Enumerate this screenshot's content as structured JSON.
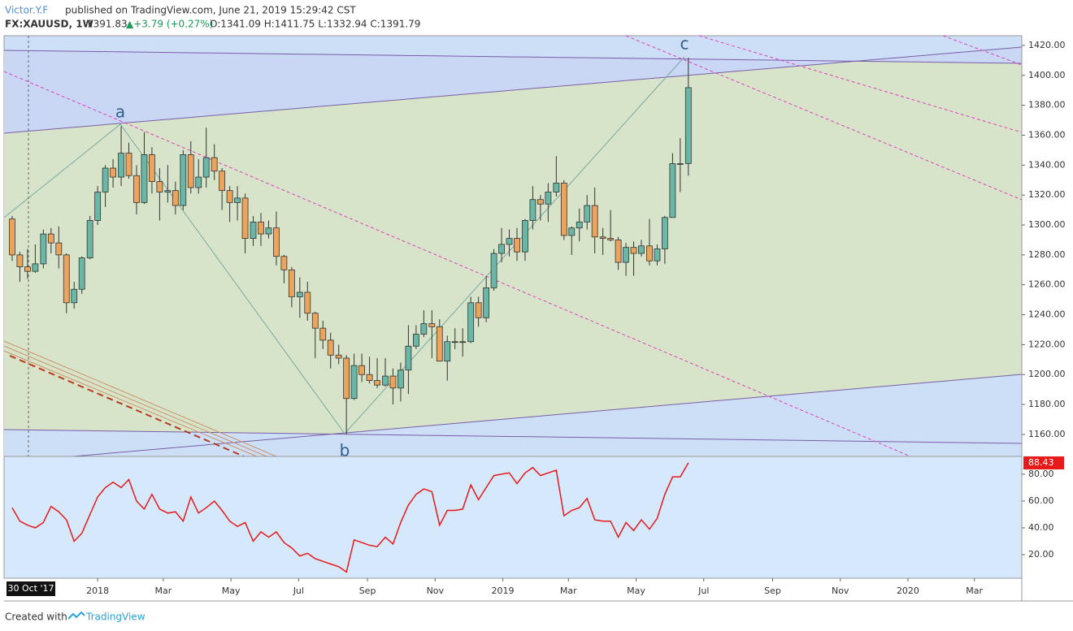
{
  "header": {
    "author": "Victor.Y.F",
    "published": "published on TradingView.com, June 21, 2019 15:29:42 CST",
    "symbol": "FX:XAUUSD, 1W",
    "last": "1391.83",
    "change": "▲+3.79 (+0.27%)",
    "ohlc": "O:1341.09 H:1411.75 L:1332.94 C:1391.79"
  },
  "footer": {
    "created": "Created with",
    "brand": "TradingView"
  },
  "crosshair_label": "30 Oct '17",
  "wave_labels": [
    "a",
    "b",
    "c"
  ],
  "chart_data": {
    "type": "candlestick",
    "up_color": "#6ab7a7",
    "down_color": "#eca45c",
    "x": [
      2017.789,
      2017.808,
      2017.827,
      2017.846,
      2017.866,
      2017.885,
      2017.904,
      2017.923,
      2017.942,
      2017.961,
      2017.981,
      2018.0,
      2018.019,
      2018.038,
      2018.058,
      2018.077,
      2018.096,
      2018.115,
      2018.134,
      2018.153,
      2018.173,
      2018.192,
      2018.211,
      2018.23,
      2018.249,
      2018.268,
      2018.288,
      2018.307,
      2018.326,
      2018.345,
      2018.364,
      2018.384,
      2018.403,
      2018.422,
      2018.441,
      2018.46,
      2018.479,
      2018.499,
      2018.518,
      2018.537,
      2018.556,
      2018.575,
      2018.595,
      2018.614,
      2018.633,
      2018.652,
      2018.671,
      2018.69,
      2018.71,
      2018.729,
      2018.748,
      2018.767,
      2018.786,
      2018.805,
      2018.825,
      2018.844,
      2018.863,
      2018.882,
      2018.901,
      2018.921,
      2018.94,
      2018.959,
      2018.978,
      2018.997,
      2019.016,
      2019.035,
      2019.055,
      2019.074,
      2019.093,
      2019.112,
      2019.132,
      2019.151,
      2019.17,
      2019.189,
      2019.208,
      2019.227,
      2019.247,
      2019.266,
      2019.285,
      2019.304,
      2019.323,
      2019.342,
      2019.362,
      2019.381,
      2019.4,
      2019.419,
      2019.438,
      2019.458
    ],
    "open": [
      1304,
      1280,
      1272,
      1269,
      1274,
      1294,
      1288,
      1280,
      1248,
      1257,
      1278,
      1303,
      1322,
      1338,
      1332,
      1348,
      1333,
      1315,
      1347,
      1329,
      1322,
      1323,
      1313,
      1347,
      1325,
      1332,
      1345,
      1336,
      1323,
      1315,
      1318,
      1291,
      1302,
      1294,
      1298,
      1279,
      1270,
      1252,
      1255,
      1241,
      1231,
      1223,
      1213,
      1211,
      1184,
      1206,
      1200,
      1196,
      1193,
      1199,
      1191,
      1203,
      1219,
      1227,
      1234,
      1232,
      1209,
      1222,
      1222,
      1222,
      1248,
      1238,
      1258,
      1281,
      1287,
      1291,
      1282,
      1303,
      1317,
      1314,
      1322,
      1328,
      1293,
      1298,
      1302,
      1313,
      1292,
      1291,
      1290,
      1275,
      1285,
      1281,
      1286,
      1276,
      1284,
      1305,
      1341,
      1341.09
    ],
    "high": [
      1306,
      1282,
      1284,
      1287,
      1297,
      1298,
      1299,
      1281,
      1262,
      1279,
      1306,
      1326,
      1340,
      1344,
      1366,
      1355,
      1340,
      1362,
      1352,
      1338,
      1340,
      1329,
      1350,
      1356,
      1344,
      1365,
      1354,
      1338,
      1326,
      1326,
      1321,
      1306,
      1308,
      1303,
      1309,
      1280,
      1272,
      1265,
      1262,
      1242,
      1236,
      1228,
      1220,
      1213,
      1214,
      1214,
      1212,
      1211,
      1211,
      1204,
      1208,
      1233,
      1233,
      1243,
      1243,
      1237,
      1226,
      1231,
      1231,
      1252,
      1252,
      1266,
      1284,
      1298,
      1297,
      1298,
      1304,
      1326,
      1320,
      1328,
      1346,
      1330,
      1299,
      1311,
      1320,
      1325,
      1298,
      1310,
      1292,
      1288,
      1289,
      1290,
      1304,
      1287,
      1306,
      1348,
      1358,
      1411.75
    ],
    "low": [
      1276,
      1262,
      1264,
      1268,
      1271,
      1281,
      1271,
      1241,
      1244,
      1254,
      1277,
      1300,
      1312,
      1325,
      1326,
      1331,
      1307,
      1314,
      1321,
      1303,
      1315,
      1307,
      1310,
      1321,
      1321,
      1325,
      1330,
      1310,
      1302,
      1303,
      1281,
      1286,
      1286,
      1291,
      1273,
      1261,
      1245,
      1238,
      1236,
      1211,
      1217,
      1204,
      1207,
      1160,
      1183,
      1195,
      1194,
      1191,
      1192,
      1180,
      1182,
      1187,
      1217,
      1225,
      1211,
      1210,
      1196,
      1217,
      1212,
      1221,
      1232,
      1235,
      1256,
      1275,
      1279,
      1276,
      1276,
      1297,
      1303,
      1302,
      1319,
      1290,
      1280,
      1289,
      1297,
      1281,
      1280,
      1289,
      1270,
      1266,
      1266,
      1279,
      1273,
      1273,
      1274,
      1305,
      1322,
      1332.94
    ],
    "close": [
      1280,
      1272,
      1269,
      1274,
      1294,
      1288,
      1280,
      1248,
      1257,
      1278,
      1303,
      1322,
      1338,
      1332,
      1348,
      1333,
      1315,
      1347,
      1329,
      1322,
      1323,
      1313,
      1347,
      1325,
      1332,
      1345,
      1336,
      1323,
      1315,
      1318,
      1291,
      1302,
      1294,
      1298,
      1279,
      1270,
      1252,
      1255,
      1241,
      1231,
      1223,
      1213,
      1211,
      1184,
      1206,
      1200,
      1196,
      1193,
      1199,
      1191,
      1203,
      1219,
      1227,
      1234,
      1232,
      1209,
      1222,
      1222,
      1222,
      1248,
      1238,
      1258,
      1281,
      1287,
      1291,
      1282,
      1303,
      1317,
      1314,
      1322,
      1328,
      1293,
      1298,
      1302,
      1313,
      1292,
      1291,
      1290,
      1275,
      1285,
      1281,
      1286,
      1276,
      1284,
      1305,
      1341,
      1341,
      1391.79
    ],
    "xlim": [
      2017.769,
      2020.281
    ],
    "xticks": [
      2018,
      {
        "value": 2018.162,
        "label": "Mar"
      },
      {
        "value": 2018.329,
        "label": "May"
      },
      {
        "value": 2018.496,
        "label": "Jul"
      },
      {
        "value": 2018.666,
        "label": "Sep"
      },
      {
        "value": 2018.833,
        "label": "Nov"
      },
      2019,
      {
        "value": 2019.162,
        "label": "Mar"
      },
      {
        "value": 2019.329,
        "label": "May"
      },
      {
        "value": 2019.496,
        "label": "Jul"
      },
      {
        "value": 2019.666,
        "label": "Sep"
      },
      {
        "value": 2019.833,
        "label": "Nov"
      },
      2020,
      {
        "value": 2020.164,
        "label": "Mar"
      }
    ],
    "ylim": [
      1145.3,
      1426.5
    ],
    "yticks": [
      {
        "value": 1160,
        "label": "1160.00"
      },
      {
        "value": 1180,
        "label": "1180.00"
      },
      {
        "value": 1200,
        "label": "1200.00"
      },
      {
        "value": 1220,
        "label": "1220.00"
      },
      {
        "value": 1240,
        "label": "1240.00"
      },
      {
        "value": 1260,
        "label": "1260.00"
      },
      {
        "value": 1280,
        "label": "1280.00"
      },
      {
        "value": 1300,
        "label": "1300.00"
      },
      {
        "value": 1320,
        "label": "1320.00"
      },
      {
        "value": 1340,
        "label": "1340.00"
      },
      {
        "value": 1360,
        "label": "1360.00"
      },
      {
        "value": 1380,
        "label": "1380.00"
      },
      {
        "value": 1400,
        "label": "1400.00"
      },
      {
        "value": 1420,
        "label": "1420.00"
      }
    ],
    "indicator": {
      "type": "line",
      "color": "#e8191b",
      "values": [
        55,
        45,
        42,
        40,
        44,
        56,
        52,
        46,
        30,
        36,
        50,
        63,
        70,
        74,
        70,
        76,
        60,
        54,
        65,
        54,
        51,
        52,
        45,
        63,
        51,
        55,
        60,
        53,
        45,
        41,
        44,
        30,
        37,
        33,
        37,
        29,
        25,
        19,
        21,
        17,
        15,
        13,
        11,
        7,
        31,
        29,
        27,
        26,
        33,
        28,
        44,
        57,
        65,
        69,
        67,
        42,
        53,
        53,
        54,
        72,
        61,
        70,
        79,
        80,
        81,
        73,
        81,
        85,
        79,
        81,
        83,
        49,
        53,
        55,
        62,
        46,
        45,
        45,
        33,
        44,
        38,
        46,
        39,
        47,
        65,
        78,
        78,
        88.43
      ],
      "last_label": "88.43",
      "ylim": [
        2.4,
        93.3
      ],
      "yticks": [
        {
          "value": 20,
          "label": "20.00"
        },
        {
          "value": 40,
          "label": "40.00"
        },
        {
          "value": 60,
          "label": "60.00"
        },
        {
          "value": 80,
          "label": "80.00"
        }
      ]
    }
  }
}
